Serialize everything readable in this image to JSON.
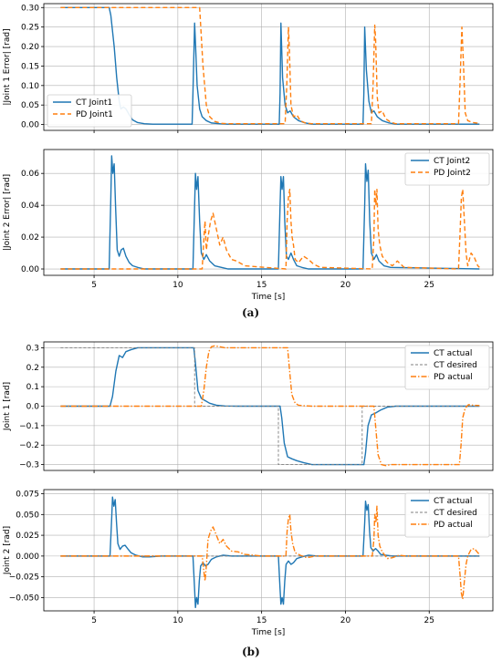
{
  "figure": {
    "caption_a": "(a)",
    "caption_b": "(b)"
  },
  "colors": {
    "ct": "#1f77b4",
    "pd": "#ff7f0e",
    "grid": "#b0b0b0",
    "desired": "#7f7f7f"
  },
  "chart_data": [
    {
      "type": "line",
      "panel": "a-top",
      "xlabel": "",
      "ylabel": "|Joint 1 Error| [rad]",
      "xlim": [
        2,
        28.8
      ],
      "ylim": [
        -0.015,
        0.31
      ],
      "xticks": [
        5,
        10,
        15,
        20,
        25
      ],
      "yticks": [
        0.0,
        0.05,
        0.1,
        0.15,
        0.2,
        0.25,
        0.3
      ],
      "ytick_labels": [
        "0.00",
        "0.05",
        "0.10",
        "0.15",
        "0.20",
        "0.25",
        "0.30"
      ],
      "show_xtick_labels": false,
      "grid": true,
      "legend": "lower-left",
      "series": [
        {
          "name": "CT Joint1",
          "color_key": "ct",
          "dash": "solid",
          "x": [
            3,
            5.9,
            6,
            6.2,
            6.35,
            6.5,
            6.6,
            6.75,
            6.9,
            7.1,
            7.3,
            7.6,
            8,
            8.5,
            10.85,
            10.9,
            11.0,
            11.05,
            11.15,
            11.3,
            11.45,
            11.7,
            12,
            12.5,
            13,
            16.05,
            16.1,
            16.15,
            16.25,
            16.4,
            16.55,
            16.7,
            16.9,
            17.2,
            17.6,
            18,
            21.05,
            21.1,
            21.15,
            21.25,
            21.4,
            21.55,
            21.7,
            21.9,
            22.2,
            22.6,
            23,
            28
          ],
          "y": [
            0.3,
            0.3,
            0.28,
            0.2,
            0.12,
            0.06,
            0.04,
            0.045,
            0.04,
            0.025,
            0.012,
            0.005,
            0.002,
            0.001,
            0.001,
            0.08,
            0.26,
            0.21,
            0.1,
            0.04,
            0.02,
            0.01,
            0.004,
            0.002,
            0.001,
            0.001,
            0.08,
            0.26,
            0.12,
            0.05,
            0.03,
            0.035,
            0.02,
            0.01,
            0.004,
            0.001,
            0.001,
            0.08,
            0.25,
            0.14,
            0.06,
            0.03,
            0.035,
            0.02,
            0.01,
            0.004,
            0.001,
            0.001
          ]
        },
        {
          "name": "PD Joint1",
          "color_key": "pd",
          "dash": "dashed",
          "x": [
            3,
            11.3,
            11.5,
            11.7,
            11.9,
            12.2,
            12.6,
            13,
            16.4,
            16.5,
            16.6,
            16.65,
            16.75,
            16.9,
            17.1,
            17.3,
            17.6,
            18,
            21.55,
            21.65,
            21.75,
            21.8,
            21.9,
            22.0,
            22.2,
            22.4,
            22.7,
            23,
            26.75,
            26.85,
            26.95,
            27.05,
            27.15,
            27.3,
            27.6,
            28
          ],
          "y": [
            0.3,
            0.3,
            0.15,
            0.05,
            0.02,
            0.008,
            0.003,
            0.002,
            0.002,
            0.1,
            0.25,
            0.2,
            0.05,
            0.02,
            0.025,
            0.01,
            0.004,
            0.002,
            0.002,
            0.1,
            0.255,
            0.22,
            0.07,
            0.03,
            0.035,
            0.015,
            0.006,
            0.002,
            0.002,
            0.12,
            0.25,
            0.15,
            0.03,
            0.01,
            0.005,
            0.003
          ]
        }
      ]
    },
    {
      "type": "line",
      "panel": "a-bottom",
      "xlabel": "Time [s]",
      "ylabel": "|Joint 2 Error| [rad]",
      "xlim": [
        2,
        28.8
      ],
      "ylim": [
        -0.004,
        0.075
      ],
      "xticks": [
        5,
        10,
        15,
        20,
        25
      ],
      "yticks": [
        0.0,
        0.02,
        0.04,
        0.06
      ],
      "ytick_labels": [
        "0.00",
        "0.02",
        "0.04",
        "0.06"
      ],
      "show_xtick_labels": true,
      "grid": true,
      "legend": "upper-right",
      "series": [
        {
          "name": "CT Joint2",
          "color_key": "ct",
          "dash": "solid",
          "x": [
            3,
            5.9,
            6.0,
            6.05,
            6.12,
            6.2,
            6.28,
            6.38,
            6.5,
            6.62,
            6.75,
            6.9,
            7.1,
            7.3,
            7.6,
            8,
            10.9,
            11.0,
            11.05,
            11.12,
            11.2,
            11.3,
            11.4,
            11.55,
            11.7,
            11.9,
            12.2,
            12.6,
            13,
            16.0,
            16.1,
            16.15,
            16.22,
            16.3,
            16.38,
            16.48,
            16.6,
            16.75,
            16.9,
            17.1,
            17.4,
            17.8,
            21.05,
            21.15,
            21.2,
            21.28,
            21.36,
            21.45,
            21.55,
            21.7,
            21.85,
            22.0,
            22.3,
            22.7,
            28
          ],
          "y": [
            0,
            0,
            0.045,
            0.071,
            0.06,
            0.066,
            0.04,
            0.012,
            0.008,
            0.012,
            0.013,
            0.008,
            0.004,
            0.002,
            0.001,
            0,
            0,
            0.04,
            0.06,
            0.05,
            0.058,
            0.03,
            0.01,
            0.006,
            0.009,
            0.005,
            0.002,
            0.001,
            0,
            0,
            0.04,
            0.058,
            0.05,
            0.058,
            0.03,
            0.008,
            0.006,
            0.01,
            0.006,
            0.002,
            0.001,
            0,
            0,
            0.04,
            0.066,
            0.055,
            0.062,
            0.03,
            0.01,
            0.006,
            0.009,
            0.005,
            0.002,
            0.001,
            0
          ]
        },
        {
          "name": "PD Joint2",
          "color_key": "pd",
          "dash": "dashed",
          "x": [
            3,
            11.45,
            11.55,
            11.62,
            11.7,
            11.8,
            11.95,
            12.1,
            12.3,
            12.5,
            12.7,
            12.9,
            13.2,
            13.5,
            14,
            16.45,
            16.52,
            16.6,
            16.68,
            16.75,
            16.82,
            16.9,
            17.0,
            17.2,
            17.5,
            17.8,
            18.1,
            18.5,
            21.6,
            21.7,
            21.75,
            21.82,
            21.88,
            21.95,
            22.05,
            22.2,
            22.5,
            22.8,
            23.1,
            23.5,
            26.75,
            26.85,
            26.92,
            27.0,
            27.1,
            27.2,
            27.3,
            27.5,
            27.7,
            27.9,
            28
          ],
          "y": [
            0,
            0,
            0.018,
            0.03,
            0.012,
            0.02,
            0.03,
            0.035,
            0.025,
            0.015,
            0.02,
            0.012,
            0.006,
            0.005,
            0.002,
            0,
            0.03,
            0.045,
            0.05,
            0.03,
            0.02,
            0.015,
            0.006,
            0.004,
            0.008,
            0.006,
            0.003,
            0.001,
            0,
            0.02,
            0.05,
            0.04,
            0.05,
            0.025,
            0.015,
            0.008,
            0.004,
            0.002,
            0.005,
            0.001,
            0,
            0.025,
            0.045,
            0.05,
            0.03,
            0.01,
            0.002,
            0.01,
            0.007,
            0.002,
            0.001
          ]
        }
      ]
    },
    {
      "type": "line",
      "panel": "b-top",
      "xlabel": "",
      "ylabel": "Joint 1 [rad]",
      "xlim": [
        2,
        28.8
      ],
      "ylim": [
        -0.33,
        0.33
      ],
      "xticks": [
        5,
        10,
        15,
        20,
        25
      ],
      "yticks": [
        -0.3,
        -0.2,
        -0.1,
        0.0,
        0.1,
        0.2,
        0.3
      ],
      "ytick_labels": [
        "−0.3",
        "−0.2",
        "−0.1",
        "0.0",
        "0.1",
        "0.2",
        "0.3"
      ],
      "show_xtick_labels": false,
      "grid": true,
      "legend": "upper-right",
      "series": [
        {
          "name": "CT actual",
          "color_key": "ct",
          "dash": "solid",
          "x": [
            3,
            5.95,
            6.1,
            6.3,
            6.5,
            6.7,
            6.9,
            7.2,
            7.6,
            8,
            8.5,
            9,
            10.95,
            11.05,
            11.2,
            11.4,
            11.6,
            11.9,
            12.3,
            12.8,
            13.5,
            16.1,
            16.2,
            16.35,
            16.55,
            16.8,
            17.1,
            17.5,
            18,
            18.5,
            21.1,
            21.2,
            21.35,
            21.55,
            21.8,
            22.1,
            22.5,
            23,
            28
          ],
          "y": [
            0,
            0,
            0.05,
            0.18,
            0.26,
            0.25,
            0.28,
            0.29,
            0.3,
            0.3,
            0.3,
            0.3,
            0.3,
            0.22,
            0.08,
            0.04,
            0.03,
            0.015,
            0.005,
            0.001,
            0,
            0,
            -0.06,
            -0.19,
            -0.26,
            -0.27,
            -0.28,
            -0.29,
            -0.3,
            -0.3,
            -0.3,
            -0.24,
            -0.1,
            -0.045,
            -0.035,
            -0.02,
            -0.005,
            0,
            0
          ]
        },
        {
          "name": "CT desired",
          "color_key": "desired",
          "dash": "thin-dashed",
          "x": [
            3,
            11,
            11,
            16,
            16,
            21,
            21,
            28
          ],
          "y": [
            0.3,
            0.3,
            0,
            0,
            -0.3,
            -0.3,
            0,
            0
          ]
        },
        {
          "name": "PD actual",
          "color_key": "pd",
          "dash": "dashdot",
          "x": [
            3,
            11.4,
            11.55,
            11.7,
            11.85,
            12,
            12.2,
            12.5,
            12.8,
            13.2,
            14,
            16.55,
            16.65,
            16.8,
            17,
            17.2,
            17.5,
            18,
            21.7,
            21.8,
            21.95,
            22.15,
            22.4,
            22.7,
            23.2,
            24,
            26.8,
            26.9,
            27.0,
            27.15,
            27.35,
            27.6,
            28
          ],
          "y": [
            0,
            0,
            0.08,
            0.2,
            0.28,
            0.305,
            0.31,
            0.305,
            0.3,
            0.3,
            0.3,
            0.3,
            0.2,
            0.06,
            0.015,
            0.005,
            0.002,
            0,
            0,
            -0.1,
            -0.25,
            -0.3,
            -0.305,
            -0.3,
            -0.3,
            -0.3,
            -0.3,
            -0.2,
            -0.06,
            -0.01,
            0.008,
            0.005,
            0.003
          ]
        }
      ]
    },
    {
      "type": "line",
      "panel": "b-bottom",
      "xlabel": "Time [s]",
      "ylabel": "Joint 2 [rad]",
      "xlim": [
        2,
        28.8
      ],
      "ylim": [
        -0.066,
        0.08
      ],
      "xticks": [
        5,
        10,
        15,
        20,
        25
      ],
      "yticks": [
        -0.05,
        -0.025,
        0.0,
        0.025,
        0.05,
        0.075
      ],
      "ytick_labels": [
        "−0.050",
        "−0.025",
        "0.000",
        "0.025",
        "0.050",
        "0.075"
      ],
      "show_xtick_labels": true,
      "grid": true,
      "legend": "upper-right",
      "series": [
        {
          "name": "CT actual",
          "color_key": "ct",
          "dash": "solid",
          "x": [
            3,
            5.95,
            6.05,
            6.1,
            6.18,
            6.26,
            6.34,
            6.42,
            6.55,
            6.7,
            6.85,
            7.0,
            7.2,
            7.5,
            7.9,
            8.3,
            9,
            10.9,
            11.0,
            11.05,
            11.12,
            11.2,
            11.28,
            11.36,
            11.5,
            11.65,
            11.8,
            12,
            12.3,
            12.7,
            13.2,
            16.0,
            16.1,
            16.15,
            16.22,
            16.3,
            16.38,
            16.46,
            16.6,
            16.75,
            16.9,
            17.1,
            17.4,
            17.8,
            18.3,
            21.05,
            21.15,
            21.2,
            21.28,
            21.36,
            21.44,
            21.52,
            21.65,
            21.8,
            21.95,
            22.1,
            22.4,
            22.8,
            23.3,
            28
          ],
          "y": [
            0,
            0,
            0.045,
            0.071,
            0.06,
            0.068,
            0.04,
            0.015,
            0.008,
            0.012,
            0.013,
            0.009,
            0.004,
            0.001,
            -0.001,
            -0.001,
            0,
            0,
            -0.04,
            -0.062,
            -0.05,
            -0.058,
            -0.03,
            -0.012,
            -0.008,
            -0.012,
            -0.01,
            -0.004,
            -0.001,
            0.001,
            0,
            0,
            -0.04,
            -0.058,
            -0.05,
            -0.058,
            -0.03,
            -0.01,
            -0.006,
            -0.01,
            -0.008,
            -0.003,
            -0.001,
            0.001,
            0,
            0,
            0.04,
            0.066,
            0.055,
            0.062,
            0.03,
            0.01,
            0.006,
            0.009,
            0.006,
            0.002,
            0.001,
            0,
            0,
            0
          ]
        },
        {
          "name": "CT desired",
          "color_key": "desired",
          "dash": "thin-dashed",
          "x": [
            3,
            28
          ],
          "y": [
            0,
            0
          ]
        },
        {
          "name": "PD actual",
          "color_key": "pd",
          "dash": "dashdot",
          "x": [
            3,
            11.45,
            11.55,
            11.62,
            11.7,
            11.8,
            11.95,
            12.1,
            12.3,
            12.5,
            12.7,
            12.9,
            13.2,
            13.6,
            14,
            15,
            16.45,
            16.52,
            16.6,
            16.68,
            16.75,
            16.85,
            17.0,
            17.3,
            17.7,
            18.2,
            21.6,
            21.7,
            21.75,
            21.82,
            21.88,
            21.95,
            22.05,
            22.2,
            22.5,
            22.8,
            23.2,
            23.6,
            26.75,
            26.85,
            26.92,
            27.0,
            27.1,
            27.2,
            27.3,
            27.5,
            27.7,
            27.9,
            28
          ],
          "y": [
            0,
            0,
            -0.018,
            -0.03,
            -0.012,
            0.02,
            0.03,
            0.035,
            0.025,
            0.015,
            0.02,
            0.012,
            0.006,
            0.005,
            0.002,
            0,
            0,
            0.03,
            0.045,
            0.05,
            0.03,
            0.015,
            0.004,
            0.001,
            -0.002,
            0,
            0,
            0.02,
            0.05,
            0.04,
            0.06,
            0.025,
            0.012,
            0.005,
            -0.003,
            -0.002,
            0.001,
            0,
            0,
            -0.025,
            -0.045,
            -0.052,
            -0.03,
            -0.01,
            0,
            0.008,
            0.009,
            0.004,
            0.002
          ]
        }
      ]
    }
  ]
}
